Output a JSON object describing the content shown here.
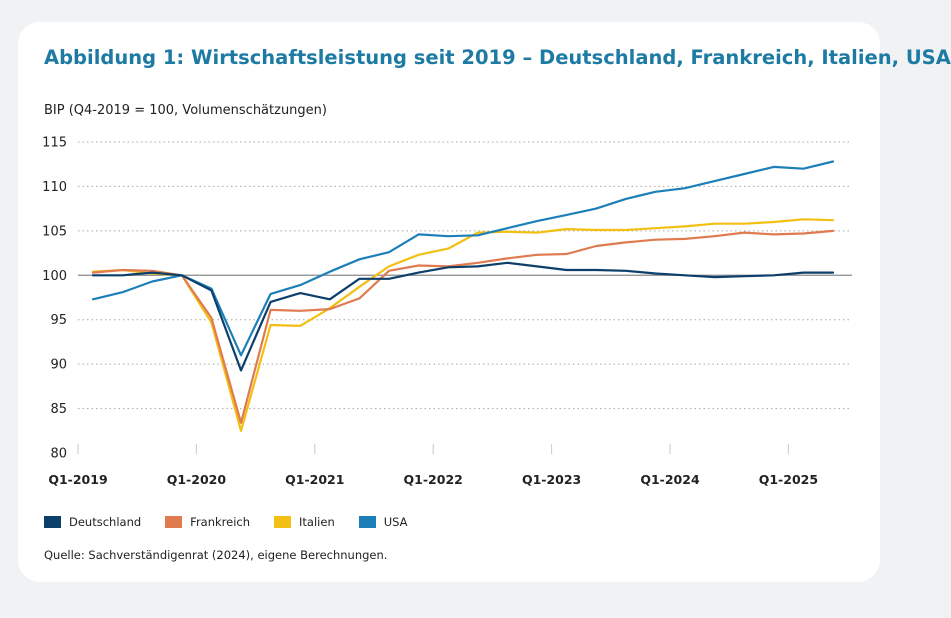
{
  "title": "Abbildung 1: Wirtschaftsleistung seit 2019 – Deutschland, Frankreich, Italien, USA",
  "source": "Quelle: Sachverständigenrat (2024), eigene Berechnungen.",
  "chart_data": {
    "type": "line",
    "ylabel": "BIP (Q4-2019 = 100, Volumenschätzungen)",
    "xlabel": "",
    "ylim": [
      80,
      115
    ],
    "yticks": [
      "80",
      "85",
      "90",
      "95",
      "100",
      "105",
      "110",
      "115"
    ],
    "xtick_labels": [
      "Q1-2019",
      "Q1-2020",
      "Q1-2021",
      "Q1-2022",
      "Q1-2023",
      "Q1-2024",
      "Q1-2025"
    ],
    "x": [
      "Q1-2019",
      "Q2-2019",
      "Q3-2019",
      "Q4-2019",
      "Q1-2020",
      "Q2-2020",
      "Q3-2020",
      "Q4-2020",
      "Q1-2021",
      "Q2-2021",
      "Q3-2021",
      "Q4-2021",
      "Q1-2022",
      "Q2-2022",
      "Q3-2022",
      "Q4-2022",
      "Q1-2023",
      "Q2-2023",
      "Q3-2023",
      "Q4-2023",
      "Q1-2024",
      "Q2-2024",
      "Q3-2024",
      "Q4-2024",
      "Q1-2025",
      "Q2-2025"
    ],
    "reference_line": 100,
    "grid": "horizontal dotted",
    "legend_position": "bottom",
    "series": [
      {
        "name": "Deutschland",
        "color": "#0c3f6a",
        "values": [
          100.0,
          100.0,
          100.3,
          100.0,
          98.3,
          89.3,
          97.0,
          98.0,
          97.3,
          99.6,
          99.6,
          100.3,
          100.9,
          101.0,
          101.4,
          101.0,
          100.6,
          100.6,
          100.5,
          100.2,
          100.0,
          99.8,
          99.9,
          100.0,
          100.3,
          100.3
        ]
      },
      {
        "name": "Frankreich",
        "color": "#e07a4f",
        "values": [
          100.3,
          100.6,
          100.5,
          100.0,
          95.2,
          83.4,
          96.1,
          96.0,
          96.2,
          97.4,
          100.5,
          101.1,
          101.0,
          101.4,
          101.9,
          102.3,
          102.4,
          103.3,
          103.7,
          104.0,
          104.1,
          104.4,
          104.8,
          104.6,
          104.7,
          105.0
        ]
      },
      {
        "name": "Italien",
        "color": "#f2bf12",
        "values": [
          100.4,
          100.6,
          100.2,
          100.0,
          94.7,
          82.5,
          94.4,
          94.3,
          96.3,
          98.7,
          101.0,
          102.3,
          103.0,
          104.8,
          104.9,
          104.8,
          105.2,
          105.1,
          105.1,
          105.3,
          105.5,
          105.8,
          105.8,
          106.0,
          106.3,
          106.2
        ]
      },
      {
        "name": "USA",
        "color": "#1d7fb8",
        "values": [
          97.3,
          98.1,
          99.3,
          100.0,
          98.5,
          91.0,
          97.9,
          98.9,
          100.4,
          101.8,
          102.6,
          104.6,
          104.4,
          104.5,
          105.3,
          106.1,
          106.8,
          107.5,
          108.6,
          109.4,
          109.8,
          110.6,
          111.4,
          112.2,
          112.0,
          112.8
        ]
      }
    ]
  }
}
